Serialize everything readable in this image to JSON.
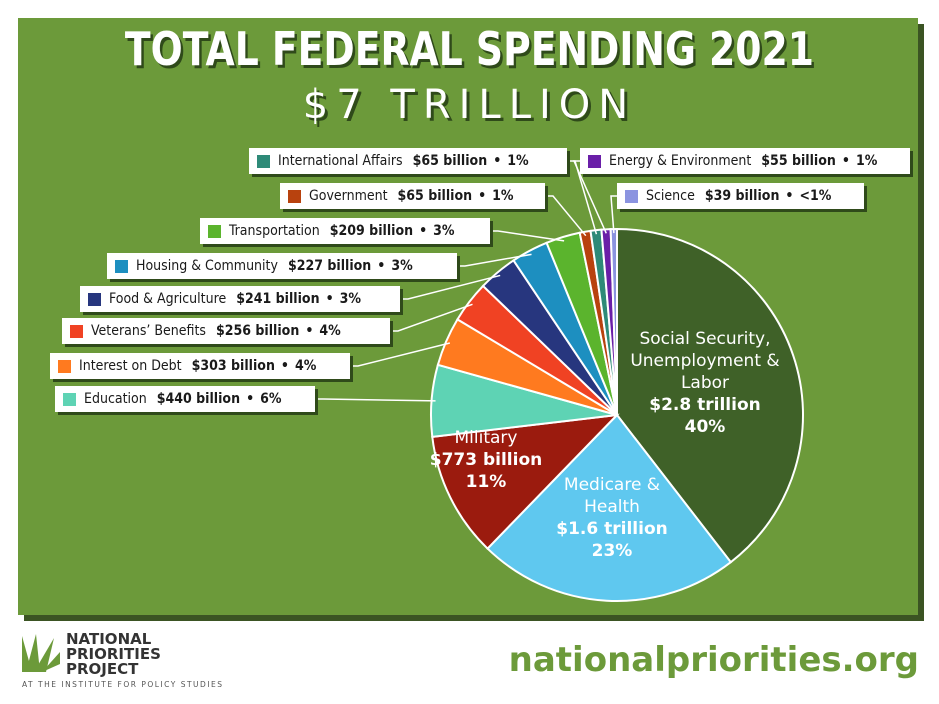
{
  "header": {
    "title": "TOTAL FEDERAL SPENDING 2021",
    "subtitle": "$7 TRILLION"
  },
  "colors": {
    "panel": "#6c9a3a",
    "shadow": "#3b5423",
    "site": "#6c9a3a"
  },
  "chart_data": {
    "type": "pie",
    "title": "TOTAL FEDERAL SPENDING 2021",
    "subtitle": "$7 TRILLION",
    "slices": [
      {
        "name": "Social Security, Unemployment & Labor",
        "value": 2.8,
        "amount": "$2.8 trillion",
        "pct": "40%",
        "share": 40,
        "color": "#3f6128"
      },
      {
        "name": "Medicare & Health",
        "value": 1.6,
        "amount": "$1.6 trillion",
        "pct": "23%",
        "share": 23,
        "color": "#5fc8ef"
      },
      {
        "name": "Military",
        "value": 0.773,
        "amount": "$773 billion",
        "pct": "11%",
        "share": 11,
        "color": "#9b1b0e"
      },
      {
        "name": "Education",
        "value": 0.44,
        "amount": "$440 billion",
        "pct": "6%",
        "share": 6.3,
        "color": "#5ed3b4"
      },
      {
        "name": "Interest on Debt",
        "value": 0.303,
        "amount": "$303 billion",
        "pct": "4%",
        "share": 4.3,
        "color": "#ff7a1f"
      },
      {
        "name": "Veterans’ Benefits",
        "value": 0.256,
        "amount": "$256 billion",
        "pct": "4%",
        "share": 3.65,
        "color": "#f04223"
      },
      {
        "name": "Food & Agriculture",
        "value": 0.241,
        "amount": "$241 billion",
        "pct": "3%",
        "share": 3.45,
        "color": "#27367e"
      },
      {
        "name": "Housing & Community",
        "value": 0.227,
        "amount": "$227 billion",
        "pct": "3%",
        "share": 3.25,
        "color": "#1d8fc0"
      },
      {
        "name": "Transportation",
        "value": 0.209,
        "amount": "$209 billion",
        "pct": "3%",
        "share": 3.0,
        "color": "#5bb42d"
      },
      {
        "name": "Government",
        "value": 0.065,
        "amount": "$65 billion",
        "pct": "1%",
        "share": 0.95,
        "color": "#b8420e"
      },
      {
        "name": "International Affairs",
        "value": 0.065,
        "amount": "$65 billion",
        "pct": "1%",
        "share": 0.95,
        "color": "#2e8a78"
      },
      {
        "name": "Energy & Environment",
        "value": 0.055,
        "amount": "$55 billion",
        "pct": "1%",
        "share": 0.8,
        "color": "#6a1fa8"
      },
      {
        "name": "Science",
        "value": 0.039,
        "amount": "$39 billion",
        "pct": "<1%",
        "share": 0.55,
        "color": "#8b94e0"
      }
    ],
    "inside_labels": [
      {
        "slice": 0,
        "lines": [
          "Social Security,",
          "Unemployment &",
          "Labor",
          "$2.8 trillion",
          "40%"
        ]
      },
      {
        "slice": 1,
        "lines": [
          "Medicare &",
          "Health",
          "$1.6 trillion",
          "23%"
        ]
      },
      {
        "slice": 2,
        "lines": [
          "Military",
          "$773 billion",
          "11%"
        ]
      }
    ]
  },
  "footer": {
    "logo_line1": "NATIONAL",
    "logo_line2": "PRIORITIES",
    "logo_line3": "PROJECT",
    "logo_sub": "AT THE INSTITUTE FOR POLICY STUDIES",
    "site": "nationalpriorities.org"
  }
}
